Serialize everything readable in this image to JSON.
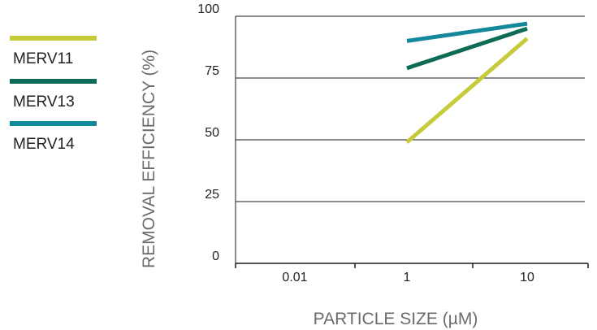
{
  "chart_data": {
    "type": "line",
    "xlabel": "PARTICLE SIZE (µM)",
    "ylabel": "REMOVAL EFFICIENCY (%)",
    "x_scale": "log",
    "x_ticks": [
      "0.01",
      "1",
      "10"
    ],
    "y_ticks": [
      "0",
      "25",
      "50",
      "75",
      "100"
    ],
    "ylim": [
      0,
      100
    ],
    "grid": "horizontal",
    "legend_position": "left",
    "series": [
      {
        "name": "MERV11",
        "color": "#c5cb3a",
        "x": [
          1,
          10
        ],
        "y": [
          49,
          91
        ]
      },
      {
        "name": "MERV13",
        "color": "#0e6b55",
        "x": [
          1,
          10
        ],
        "y": [
          79,
          95
        ]
      },
      {
        "name": "MERV14",
        "color": "#13879b",
        "x": [
          1,
          10
        ],
        "y": [
          90,
          97
        ]
      }
    ]
  }
}
